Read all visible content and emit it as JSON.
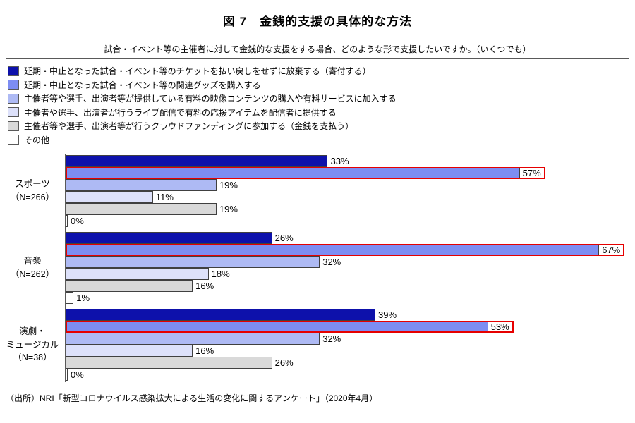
{
  "title": "図 7　金銭的支援の具体的な方法",
  "question": "試合・イベント等の主催者に対して金銭的な支援をする場合、どのような形で支援したいですか。（いくつでも）",
  "source": "（出所）NRI「新型コロナウイルス感染拡大による生活の変化に関するアンケート」（2020年4月）",
  "chart_data": {
    "type": "bar",
    "orientation": "horizontal",
    "value_unit": "%",
    "xmax": 70,
    "grid": false,
    "legend_position": "top-left",
    "highlight_color": "#e60000",
    "bar_border_color": "#404040",
    "axis_color": "#595959",
    "categories": [
      "スポーツ（N=266）",
      "音楽（N=262）",
      "演劇・ミュージカル（N=38）"
    ],
    "series": [
      {
        "name": "延期・中止となった試合・イベント等のチケットを払い戻しをせずに放棄する（寄付する）",
        "color": "#0d11ab",
        "values": [
          33,
          26,
          39
        ]
      },
      {
        "name": "延期・中止となった試合・イベント等の関連グッズを購入する",
        "color": "#7d8df2",
        "values": [
          57,
          67,
          53
        ],
        "highlighted": true
      },
      {
        "name": "主催者等や選手、出演者等が提供している有料の映像コンテンツの購入や有料サービスに加入する",
        "color": "#aebaf4",
        "values": [
          19,
          32,
          32
        ]
      },
      {
        "name": "主催者や選手、出演者が行うライブ配信で有料の応援アイテムを配信者に提供する",
        "color": "#dde1fa",
        "values": [
          11,
          18,
          16
        ]
      },
      {
        "name": "主催者等や選手、出演者等が行うクラウドファンディングに参加する（金銭を支払う）",
        "color": "#d9d9d9",
        "values": [
          19,
          16,
          26
        ]
      },
      {
        "name": "その他",
        "color": "#ffffff",
        "values": [
          0,
          1,
          0
        ]
      }
    ],
    "groups": [
      {
        "category": "スポーツ（N=266）",
        "category_lines": [
          "スポーツ",
          "（N=266）"
        ],
        "values": [
          33,
          57,
          19,
          11,
          19,
          0
        ],
        "labels": [
          "33%",
          "57%",
          "19%",
          "11%",
          "19%",
          "0%"
        ],
        "highlight_index": 1
      },
      {
        "category": "音楽（N=262）",
        "category_lines": [
          "音楽",
          "（N=262）"
        ],
        "values": [
          26,
          67,
          32,
          18,
          16,
          1
        ],
        "labels": [
          "26%",
          "67%",
          "32%",
          "18%",
          "16%",
          "1%"
        ],
        "highlight_index": 1
      },
      {
        "category": "演劇・ミュージカル（N=38）",
        "category_lines": [
          "演劇・",
          "ミュージカル",
          "（N=38）"
        ],
        "values": [
          39,
          53,
          32,
          16,
          26,
          0
        ],
        "labels": [
          "39%",
          "53%",
          "32%",
          "16%",
          "26%",
          "0%"
        ],
        "highlight_index": 1
      }
    ]
  }
}
